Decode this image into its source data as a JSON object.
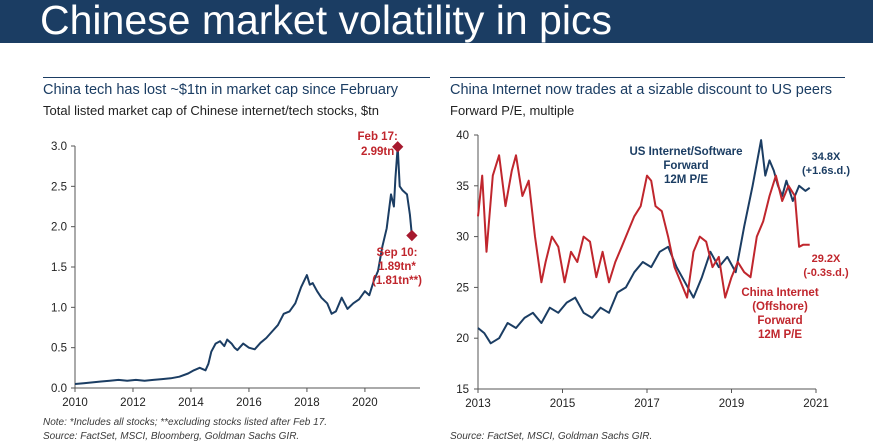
{
  "banner": {
    "title": "Chinese market volatility in pics"
  },
  "colors": {
    "banner": "#1b3d63",
    "navy": "#1b3d63",
    "red": "#c0262d",
    "marker": "#a6192e"
  },
  "left_panel": {
    "title": "China tech has lost ~$1tn in market cap since February",
    "subtitle": "Total listed market cap of Chinese internet/tech stocks, $tn",
    "note": "Note: *Includes all stocks; **excluding stocks listed after Feb 17.",
    "source": "Source: FactSet, MSCI, Bloomberg, Goldman Sachs GIR."
  },
  "right_panel": {
    "title": "China Internet now trades at a sizable discount to US peers",
    "subtitle": "Forward P/E, multiple",
    "source": "Source: FactSet, MSCI, Goldman Sachs GIR."
  },
  "chart_data": [
    {
      "type": "line",
      "title": "China tech has lost ~$1tn in market cap since February",
      "ylabel": "Total listed market cap of Chinese internet/tech stocks, $tn",
      "xlim": [
        2010,
        2021.9
      ],
      "ylim": [
        0,
        3.0
      ],
      "xticks": [
        "2010",
        "2012",
        "2014",
        "2016",
        "2018",
        "2020"
      ],
      "yticks": [
        "0.0",
        "0.5",
        "1.0",
        "1.5",
        "2.0",
        "2.5",
        "3.0"
      ],
      "series": [
        {
          "name": "Total listed market cap",
          "color": "#1b3d63",
          "x": [
            2010.0,
            2010.3,
            2010.6,
            2010.9,
            2011.2,
            2011.5,
            2011.8,
            2012.1,
            2012.4,
            2012.7,
            2013.0,
            2013.3,
            2013.6,
            2013.9,
            2014.1,
            2014.3,
            2014.5,
            2014.6,
            2014.7,
            2014.85,
            2015.0,
            2015.15,
            2015.25,
            2015.4,
            2015.5,
            2015.6,
            2015.8,
            2016.0,
            2016.2,
            2016.4,
            2016.6,
            2016.8,
            2017.0,
            2017.2,
            2017.4,
            2017.6,
            2017.8,
            2018.0,
            2018.1,
            2018.2,
            2018.35,
            2018.5,
            2018.7,
            2018.85,
            2019.0,
            2019.2,
            2019.4,
            2019.6,
            2019.8,
            2020.0,
            2020.15,
            2020.3,
            2020.45,
            2020.6,
            2020.75,
            2020.9,
            2021.0,
            2021.05,
            2021.13,
            2021.2,
            2021.3,
            2021.45,
            2021.55,
            2021.62
          ],
          "values": [
            0.05,
            0.06,
            0.07,
            0.08,
            0.09,
            0.1,
            0.09,
            0.1,
            0.09,
            0.1,
            0.11,
            0.12,
            0.14,
            0.18,
            0.22,
            0.25,
            0.22,
            0.3,
            0.45,
            0.55,
            0.58,
            0.52,
            0.6,
            0.55,
            0.5,
            0.47,
            0.55,
            0.5,
            0.48,
            0.56,
            0.62,
            0.7,
            0.78,
            0.92,
            0.95,
            1.05,
            1.25,
            1.4,
            1.28,
            1.3,
            1.2,
            1.12,
            1.05,
            0.92,
            0.95,
            1.12,
            0.98,
            1.05,
            1.1,
            1.2,
            1.15,
            1.32,
            1.45,
            1.75,
            1.98,
            2.4,
            2.25,
            2.6,
            2.99,
            2.5,
            2.45,
            2.4,
            2.15,
            1.89
          ]
        }
      ],
      "annotations": [
        {
          "label": "Feb 17:",
          "value_label": "2.99tn",
          "x": 2021.13,
          "y": 2.99
        },
        {
          "label": "Sep 10:",
          "value_label": "1.89tn*",
          "extra_label": "(1.81tn**)",
          "x": 2021.62,
          "y": 1.89
        }
      ]
    },
    {
      "type": "line",
      "title": "China Internet now trades at a sizable discount to US peers",
      "ylabel": "Forward P/E, multiple",
      "xlim": [
        2013,
        2021
      ],
      "ylim": [
        15,
        40
      ],
      "xticks": [
        "2013",
        "2015",
        "2017",
        "2019",
        "2021"
      ],
      "yticks": [
        "15",
        "20",
        "25",
        "30",
        "35",
        "40"
      ],
      "series": [
        {
          "name": "US Internet/Software Forward 12M P/E",
          "label_lines": [
            "US Internet/Software",
            "Forward",
            "12M P/E"
          ],
          "color": "#1b3d63",
          "x": [
            2013.0,
            2013.15,
            2013.3,
            2013.5,
            2013.7,
            2013.9,
            2014.1,
            2014.3,
            2014.5,
            2014.7,
            2014.9,
            2015.1,
            2015.3,
            2015.5,
            2015.7,
            2015.9,
            2016.1,
            2016.3,
            2016.5,
            2016.7,
            2016.9,
            2017.1,
            2017.3,
            2017.5,
            2017.7,
            2017.9,
            2018.1,
            2018.3,
            2018.5,
            2018.7,
            2018.9,
            2019.1,
            2019.3,
            2019.5,
            2019.7,
            2019.8,
            2019.9,
            2020.0,
            2020.1,
            2020.2,
            2020.3,
            2020.45,
            2020.6,
            2020.75,
            2020.85
          ],
          "values": [
            21.0,
            20.5,
            19.5,
            20.0,
            21.5,
            21.0,
            22.0,
            22.5,
            21.5,
            23.0,
            22.5,
            23.5,
            24.0,
            22.5,
            22.0,
            23.0,
            22.5,
            24.5,
            25.0,
            26.5,
            27.5,
            27.0,
            28.5,
            29.0,
            27.0,
            25.5,
            24.0,
            26.0,
            28.5,
            27.0,
            28.0,
            26.5,
            31.0,
            35.0,
            39.5,
            36.0,
            37.5,
            36.5,
            35.0,
            34.0,
            35.5,
            33.5,
            35.0,
            34.5,
            34.8
          ]
        },
        {
          "name": "China Internet (Offshore) Forward 12M P/E",
          "label_lines": [
            "China Internet",
            "(Offshore)",
            "Forward",
            "12M P/E"
          ],
          "color": "#c0262d",
          "x": [
            2013.0,
            2013.1,
            2013.2,
            2013.35,
            2013.5,
            2013.65,
            2013.8,
            2013.9,
            2014.05,
            2014.2,
            2014.35,
            2014.5,
            2014.6,
            2014.75,
            2014.9,
            2015.05,
            2015.2,
            2015.35,
            2015.5,
            2015.65,
            2015.8,
            2015.95,
            2016.1,
            2016.25,
            2016.4,
            2016.55,
            2016.7,
            2016.85,
            2017.0,
            2017.1,
            2017.2,
            2017.35,
            2017.5,
            2017.65,
            2017.8,
            2017.95,
            2018.1,
            2018.25,
            2018.4,
            2018.55,
            2018.7,
            2018.85,
            2019.0,
            2019.15,
            2019.3,
            2019.45,
            2019.6,
            2019.75,
            2019.9,
            2020.05,
            2020.2,
            2020.35,
            2020.5,
            2020.6,
            2020.7,
            2020.85
          ],
          "values": [
            32.0,
            36.0,
            28.5,
            36.0,
            38.0,
            33.0,
            36.5,
            38.0,
            34.0,
            35.5,
            30.0,
            25.5,
            27.5,
            30.0,
            29.0,
            25.5,
            28.5,
            27.5,
            30.0,
            29.5,
            26.0,
            28.5,
            25.5,
            27.5,
            29.0,
            30.5,
            32.0,
            33.0,
            36.0,
            35.5,
            33.0,
            32.5,
            30.0,
            27.0,
            25.5,
            24.0,
            28.5,
            30.0,
            29.5,
            27.0,
            28.0,
            24.0,
            26.0,
            27.5,
            26.5,
            26.0,
            30.0,
            31.5,
            34.0,
            36.0,
            33.5,
            35.0,
            34.0,
            29.0,
            29.2,
            29.2
          ]
        }
      ],
      "annotations": [
        {
          "label": "34.8X",
          "sub_label": "(+1.6s.d.)",
          "series": "US Internet/Software Forward 12M P/E",
          "value": 34.8
        },
        {
          "label": "29.2X",
          "sub_label": "(-0.3s.d.)",
          "series": "China Internet (Offshore) Forward 12M P/E",
          "value": 29.2
        }
      ]
    }
  ]
}
